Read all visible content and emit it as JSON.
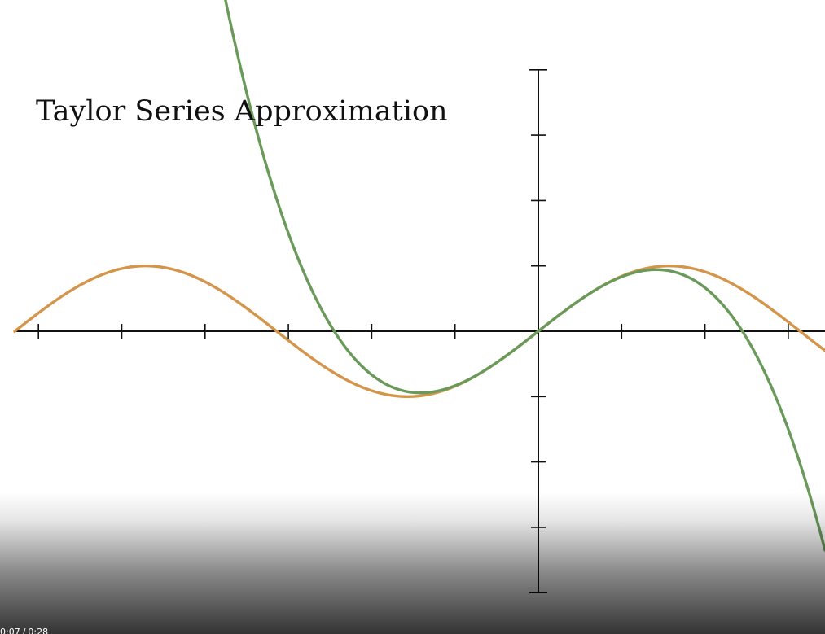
{
  "video": {
    "title": "Taylor Series Approximation",
    "time_current": "0:07",
    "time_separator": "/",
    "time_total": "0:28"
  },
  "chart_data": {
    "type": "line",
    "title": "Taylor Series Approximation",
    "xlabel": "",
    "ylabel": "",
    "xlim": [
      -6.3,
      3.5
    ],
    "ylim": [
      -4,
      4
    ],
    "x_ticks": [
      -6,
      -5,
      -4,
      -3,
      -2,
      -1,
      1,
      2,
      3
    ],
    "y_ticks": [
      -4,
      -3,
      -2,
      -1,
      1,
      2,
      3,
      4
    ],
    "grid": false,
    "legend": "none",
    "series": [
      {
        "function": "sin(x)",
        "color": "#D4954A"
      },
      {
        "function": "x - x^3/6",
        "color": "#6A9A5A"
      }
    ]
  },
  "colors": {
    "axis": "#111111",
    "background": "#ffffff",
    "controls_text": "#ffffff"
  }
}
